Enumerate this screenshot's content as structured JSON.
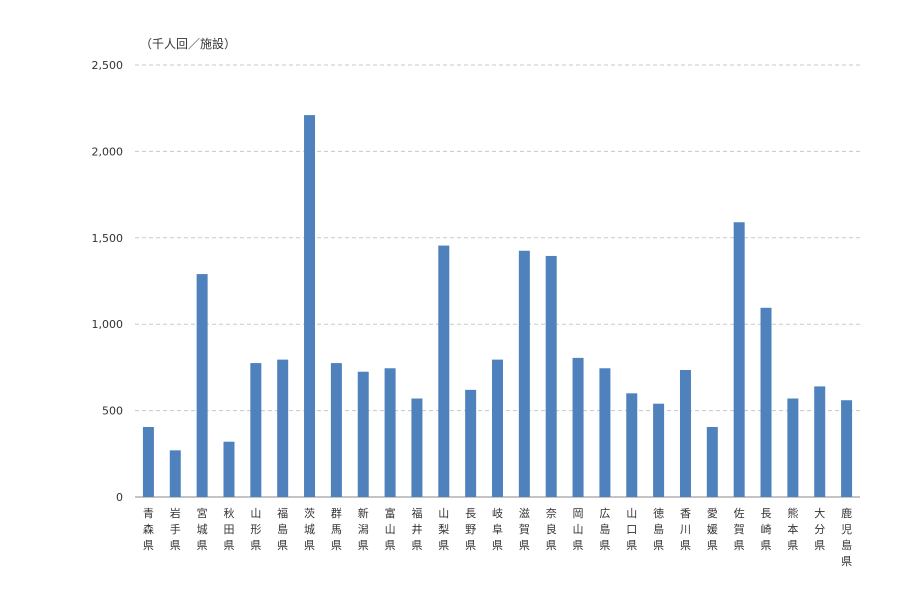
{
  "chart_data": {
    "type": "bar",
    "unit_label": "（千人回／施設）",
    "categories": [
      "青森県",
      "岩手県",
      "宮城県",
      "秋田県",
      "山形県",
      "福島県",
      "茨城県",
      "群馬県",
      "新潟県",
      "富山県",
      "福井県",
      "山梨県",
      "長野県",
      "岐阜県",
      "滋賀県",
      "奈良県",
      "岡山県",
      "広島県",
      "山口県",
      "徳島県",
      "香川県",
      "愛媛県",
      "佐賀県",
      "長崎県",
      "熊本県",
      "大分県",
      "鹿児島県"
    ],
    "values": [
      405,
      270,
      1290,
      320,
      775,
      795,
      2210,
      775,
      725,
      745,
      570,
      1455,
      620,
      795,
      1425,
      1395,
      805,
      745,
      600,
      540,
      735,
      405,
      1590,
      1095,
      570,
      640,
      560
    ],
    "ylim": [
      0,
      2500
    ],
    "yticks": [
      "0",
      "500",
      "1,000",
      "1,500",
      "2,000",
      "2,500"
    ],
    "ytick_values": [
      0,
      500,
      1000,
      1500,
      2000,
      2500
    ],
    "grid": true,
    "bar_color": "#4f81bd"
  }
}
